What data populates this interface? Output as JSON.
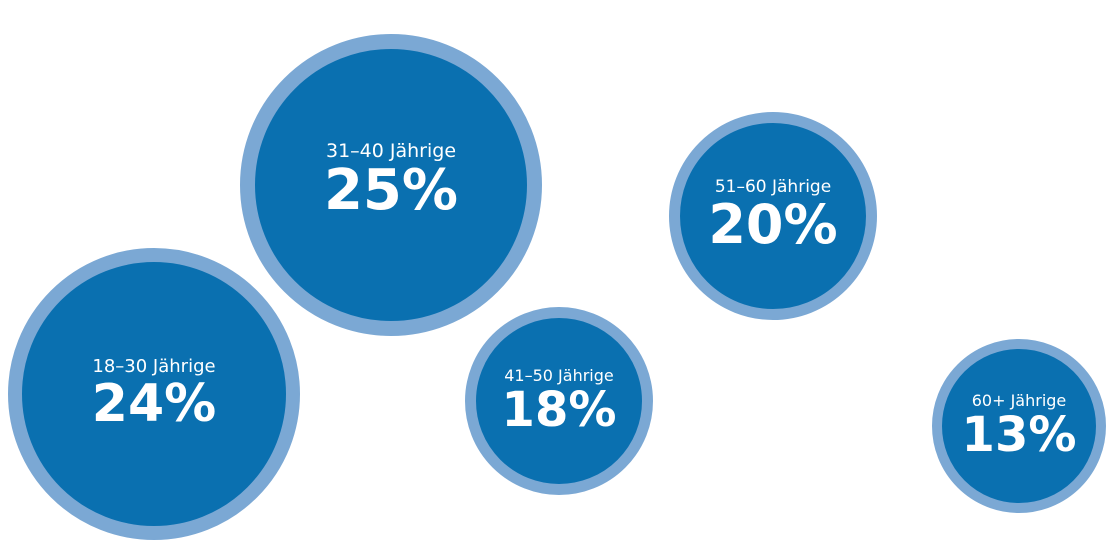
{
  "chart_data": {
    "type": "bubble",
    "title": "",
    "colors": {
      "fill": "#0a70b0",
      "ring": "#7ba8d4",
      "text": "#ffffff"
    },
    "categories": [
      "18–30 Jährige",
      "31–40 Jährige",
      "41–50 Jährige",
      "51–60 Jährige",
      "60+ Jährige"
    ],
    "values": [
      24,
      25,
      18,
      20,
      13
    ],
    "value_labels": [
      "24%",
      "25%",
      "18%",
      "20%",
      "13%"
    ]
  }
}
